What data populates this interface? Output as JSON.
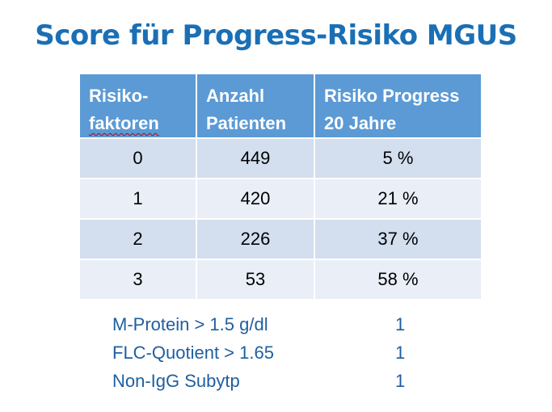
{
  "title": "Score für Progress-Risiko MGUS",
  "table": {
    "headers": [
      {
        "line1": "Risiko-",
        "line2": "faktoren"
      },
      {
        "line1": "Anzahl",
        "line2": "Patienten"
      },
      {
        "line1": "Risiko Progress",
        "line2": "20 Jahre"
      }
    ],
    "rows": [
      {
        "factors": "0",
        "patients": "449",
        "risk": "5 %"
      },
      {
        "factors": "1",
        "patients": "420",
        "risk": "21 %"
      },
      {
        "factors": "2",
        "patients": "226",
        "risk": "37 %"
      },
      {
        "factors": "3",
        "patients": "53",
        "risk": "58 %"
      }
    ]
  },
  "risk_factors": [
    {
      "label": "M-Protein > 1.5 g/dl",
      "score": "1"
    },
    {
      "label": "FLC-Quotient > 1.65",
      "score": "1"
    },
    {
      "label": "Non-IgG Subytp",
      "score": "1"
    }
  ],
  "colors": {
    "title": "#1a6fb5",
    "header_bg": "#5b9ad5",
    "row_dark": "#d3deef",
    "row_light": "#e9eef7",
    "factor_text": "#1f5fa0"
  }
}
